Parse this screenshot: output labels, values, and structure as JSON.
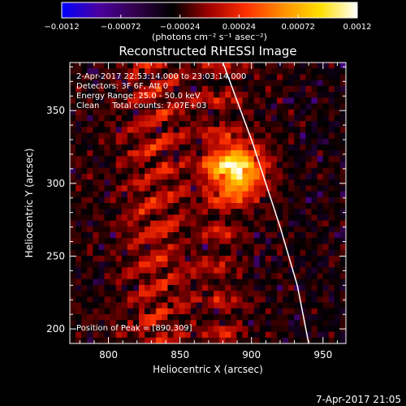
{
  "chart_data": {
    "type": "heatmap",
    "title": "Reconstructed RHESSI Image",
    "xlabel": "Heliocentric X (arcsec)",
    "ylabel": "Heliocentric Y (arcsec)",
    "xlim": [
      773,
      966
    ],
    "ylim": [
      190,
      383
    ],
    "x_ticks": [
      "800",
      "850",
      "900",
      "950"
    ],
    "y_ticks": [
      "200",
      "250",
      "300",
      "350"
    ],
    "colorbar": {
      "min": -0.0012,
      "max": 0.0012,
      "tick_labels": [
        "−0.0012",
        "−0.00072",
        "−0.00024",
        "0.00024",
        "0.00072",
        "0.0012"
      ],
      "units_label": "(photons cm⁻² s⁻¹ asec⁻²)",
      "colors": [
        "#0000ff",
        "#4b00a0",
        "#32004b",
        "#000000",
        "#a00000",
        "#ff3000",
        "#ff9000",
        "#ffe000",
        "#ffffff"
      ]
    },
    "annotations": [
      "2-Apr-2017 22:53:14.000 to 23:03:14.000",
      "Detectors: 3F 6F, Att 0",
      "Energy Range: 25.0 - 50.0 keV",
      "Clean     Total counts: 7.07E+03"
    ],
    "peak_label": "Position of Peak = [890,309]",
    "peak": [
      890,
      309
    ],
    "grid_cells": 48,
    "limb_curve": [
      [
        880,
        383
      ],
      [
        900,
        330
      ],
      [
        920,
        270
      ],
      [
        932,
        230
      ],
      [
        940,
        190
      ]
    ],
    "footer_timestamp": "7-Apr-2017 21:05"
  }
}
